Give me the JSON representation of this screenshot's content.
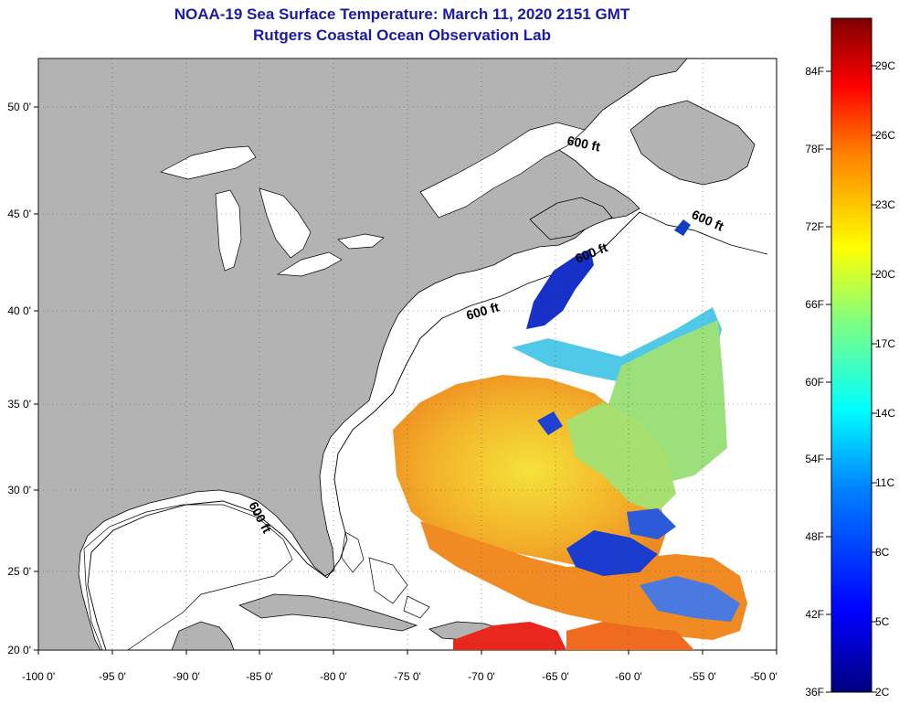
{
  "title": {
    "line1": "NOAA-19 Sea Surface Temperature:  March 11, 2020 2151 GMT",
    "line2": "Rutgers Coastal Ocean Observation Lab"
  },
  "map": {
    "lon_range": [
      -100,
      -50
    ],
    "lat_range": [
      20,
      52
    ],
    "x_ticks": [
      "-100 0'",
      "-95 0'",
      "-90 0'",
      "-85 0'",
      "-80 0'",
      "-75 0'",
      "-70 0'",
      "-65 0'",
      "-60 0'",
      "-55 0'",
      "-50 0'"
    ],
    "y_ticks": [
      "50 0'",
      "45 0'",
      "40 0'",
      "35 0'",
      "30 0'",
      "25 0'",
      "20 0'"
    ],
    "contour_labels": [
      "600 ft",
      "600 ft",
      "600 ft",
      "600 ft",
      "600 ft"
    ]
  },
  "colorbar": {
    "f_labels": [
      "84F",
      "78F",
      "72F",
      "66F",
      "60F",
      "54F",
      "48F",
      "42F",
      "36F"
    ],
    "c_labels": [
      "29C",
      "26C",
      "23C",
      "20C",
      "17C",
      "14C",
      "11C",
      "8C",
      "5C",
      "2C"
    ],
    "colors": [
      "#000080",
      "#0000ff",
      "#0080ff",
      "#00ffff",
      "#80ff80",
      "#ffff00",
      "#ff8000",
      "#ff0000",
      "#800000"
    ]
  }
}
